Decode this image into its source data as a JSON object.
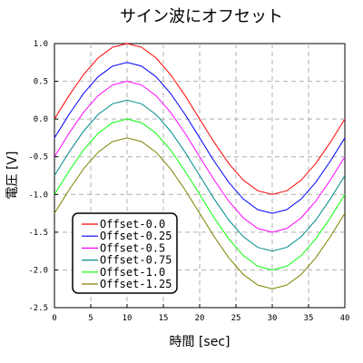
{
  "chart_data": {
    "type": "line",
    "title": "サイン波にオフセット",
    "xlabel": "時間 [sec]",
    "ylabel": "電圧 [V]",
    "xlim": [
      0,
      40
    ],
    "ylim": [
      -2.5,
      1.0
    ],
    "xticks": [
      0,
      5,
      10,
      15,
      20,
      25,
      30,
      35,
      40
    ],
    "yticks": [
      1.0,
      0.5,
      0.0,
      -0.5,
      -1.0,
      -1.5,
      -2.0,
      -2.5
    ],
    "xtick_labels": [
      "0",
      "5",
      "10",
      "15",
      "20",
      "25",
      "30",
      "35",
      "40"
    ],
    "ytick_labels": [
      "1.0",
      "0.5",
      "0.0",
      "-0.5",
      "-1.0",
      "-1.5",
      "-2.0",
      "-2.5"
    ],
    "grid": true,
    "legend_position": "lower-left",
    "function": "y = sin(2*pi*x/40) - offset",
    "x": [
      0,
      2,
      4,
      6,
      8,
      10,
      12,
      14,
      16,
      18,
      20,
      22,
      24,
      26,
      28,
      30,
      32,
      34,
      36,
      38,
      40
    ],
    "series": [
      {
        "name": "Offset-0.0",
        "color": "#ff0000",
        "values": [
          0.0,
          0.309,
          0.588,
          0.809,
          0.951,
          1.0,
          0.951,
          0.809,
          0.588,
          0.309,
          0.0,
          -0.309,
          -0.588,
          -0.809,
          -0.951,
          -1.0,
          -0.951,
          -0.809,
          -0.588,
          -0.309,
          0.0
        ]
      },
      {
        "name": "Offset-0.25",
        "color": "#0000ff",
        "values": [
          -0.25,
          0.059,
          0.338,
          0.559,
          0.701,
          0.75,
          0.701,
          0.559,
          0.338,
          0.059,
          -0.25,
          -0.559,
          -0.838,
          -1.059,
          -1.201,
          -1.25,
          -1.201,
          -1.059,
          -0.838,
          -0.559,
          -0.25
        ]
      },
      {
        "name": "Offset-0.5",
        "color": "#ff00ff",
        "values": [
          -0.5,
          -0.191,
          0.088,
          0.309,
          0.451,
          0.5,
          0.451,
          0.309,
          0.088,
          -0.191,
          -0.5,
          -0.809,
          -1.088,
          -1.309,
          -1.451,
          -1.5,
          -1.451,
          -1.309,
          -1.088,
          -0.809,
          -0.5
        ]
      },
      {
        "name": "Offset-0.75",
        "color": "#008b8b",
        "values": [
          -0.75,
          -0.441,
          -0.162,
          0.059,
          0.201,
          0.25,
          0.201,
          0.059,
          -0.162,
          -0.441,
          -0.75,
          -1.059,
          -1.338,
          -1.559,
          -1.701,
          -1.75,
          -1.701,
          -1.559,
          -1.338,
          -1.059,
          -0.75
        ]
      },
      {
        "name": "Offset-1.0",
        "color": "#00ff00",
        "values": [
          -1.0,
          -0.691,
          -0.412,
          -0.191,
          -0.049,
          0.0,
          -0.049,
          -0.191,
          -0.412,
          -0.691,
          -1.0,
          -1.309,
          -1.588,
          -1.809,
          -1.951,
          -2.0,
          -1.951,
          -1.809,
          -1.588,
          -1.309,
          -1.0
        ]
      },
      {
        "name": "Offset-1.25",
        "color": "#808000",
        "values": [
          -1.25,
          -0.941,
          -0.662,
          -0.441,
          -0.299,
          -0.25,
          -0.299,
          -0.441,
          -0.662,
          -0.941,
          -1.25,
          -1.559,
          -1.838,
          -2.059,
          -2.201,
          -2.25,
          -2.201,
          -2.059,
          -1.838,
          -1.559,
          -1.25
        ]
      }
    ]
  }
}
